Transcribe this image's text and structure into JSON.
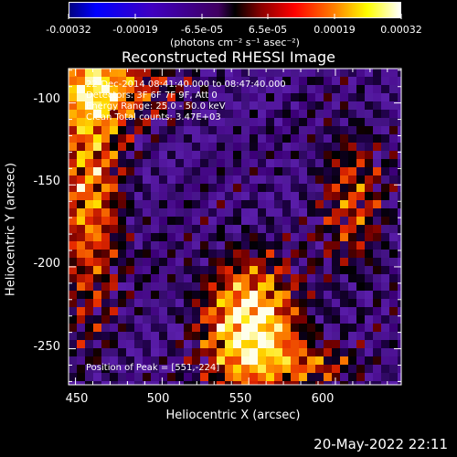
{
  "colorbar": {
    "tick_labels": [
      "-0.00032",
      "-0.00019",
      "-6.5e-05",
      "6.5e-05",
      "0.00019",
      "0.00032"
    ],
    "units": "(photons cm⁻² s⁻¹ asec⁻²)",
    "colormap": [
      "#0000ff",
      "#ff0000",
      "#ffff00",
      "#ffffff"
    ]
  },
  "chart_data": {
    "type": "heatmap",
    "title": "Reconstructed RHESSI Image",
    "xlabel": "Heliocentric X (arcsec)",
    "ylabel": "Heliocentric Y (arcsec)",
    "xlim": [
      446,
      638
    ],
    "ylim": [
      -272,
      -79
    ],
    "x_ticks": [
      "450",
      "500",
      "550",
      "600"
    ],
    "y_ticks": [
      "-100",
      "-150",
      "-200",
      "-250"
    ],
    "peak": [
      551,
      -224
    ],
    "annotations": {
      "time": "22-Dec-2014 08:41:40.000 to 08:47:40.000",
      "detectors": "Detectors: 3F 6F 7F 9F, Att 0",
      "energy": "Energy Range: 25.0 - 50.0 keV",
      "method": "Clean     Total counts: 3.47E+03",
      "peak": "Position of Peak = [551,-224]"
    }
  },
  "footer": {
    "date": "20-May-2022 22:11"
  }
}
